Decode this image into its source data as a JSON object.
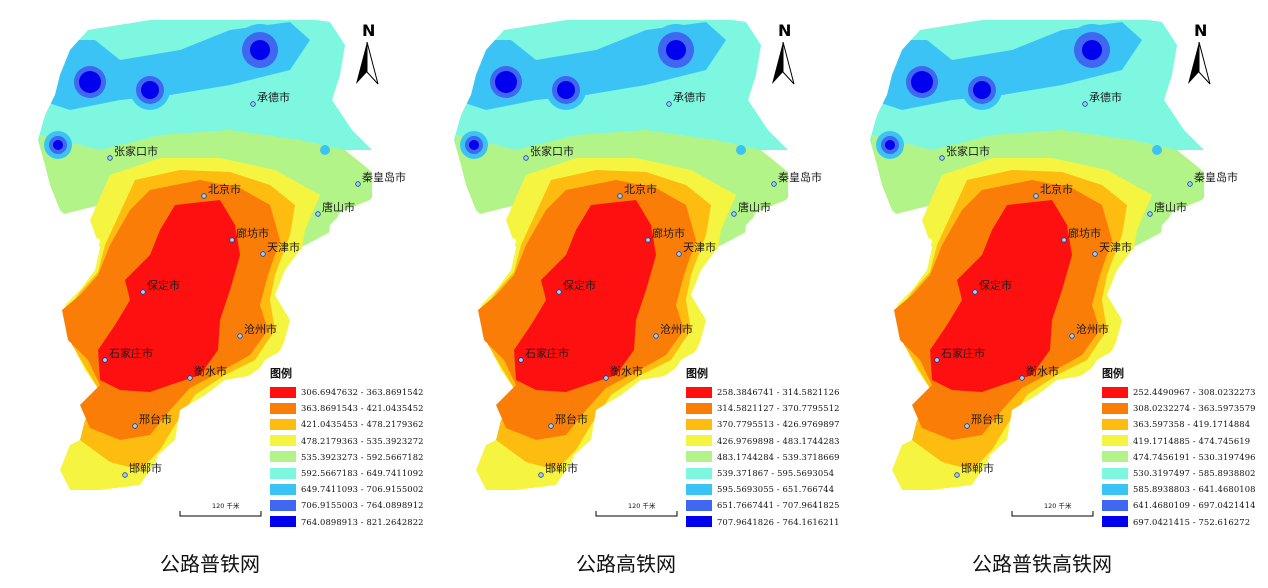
{
  "colors": [
    "#ff1010",
    "#fa7d08",
    "#fdbc0f",
    "#f5f541",
    "#b3f488",
    "#7df7df",
    "#3cc3f6",
    "#3f67f0",
    "#0000ee"
  ],
  "north_label": "N",
  "scale_label": "120 千米",
  "legend_title": "图例",
  "cities": [
    {
      "name": "承德市"
    },
    {
      "name": "张家口市"
    },
    {
      "name": "秦皇岛市"
    },
    {
      "name": "北京市"
    },
    {
      "name": "唐山市"
    },
    {
      "name": "廊坊市"
    },
    {
      "name": "天津市"
    },
    {
      "name": "保定市"
    },
    {
      "name": "沧州市"
    },
    {
      "name": "石家庄市"
    },
    {
      "name": "衡水市"
    },
    {
      "name": "邢台市"
    },
    {
      "name": "邯郸市"
    }
  ],
  "panels": [
    {
      "caption": "公路普铁网",
      "legend": [
        "306.6947632 - 363.8691542",
        "363.8691543 - 421.0435452",
        "421.0435453 - 478.2179362",
        "478.2179363 - 535.3923272",
        "535.3923273 - 592.5667182",
        "592.5667183 - 649.7411092",
        "649.7411093 - 706.9155002",
        "706.9155003 - 764.0898912",
        "764.0898913 - 821.2642822"
      ]
    },
    {
      "caption": "公路高铁网",
      "legend": [
        "258.3846741 - 314.5821126",
        "314.5821127 - 370.7795512",
        "370.7795513 - 426.9769897",
        "426.9769898 - 483.1744283",
        "483.1744284 - 539.3718669",
        "539.371867 - 595.5693054",
        "595.5693055 - 651.766744",
        "651.7667441 - 707.9641825",
        "707.9641826 - 764.1616211"
      ]
    },
    {
      "caption": "公路普铁高铁网",
      "legend": [
        "252.4490967 - 308.0232273",
        "308.0232274 - 363.5973579",
        "363.597358 - 419.1714884",
        "419.1714885 - 474.745619",
        "474.7456191 - 530.3197496",
        "530.3197497 - 585.8938802",
        "585.8938803 - 641.4680108",
        "641.4680109 - 697.0421414",
        "697.0421415 - 752.616272"
      ]
    }
  ]
}
